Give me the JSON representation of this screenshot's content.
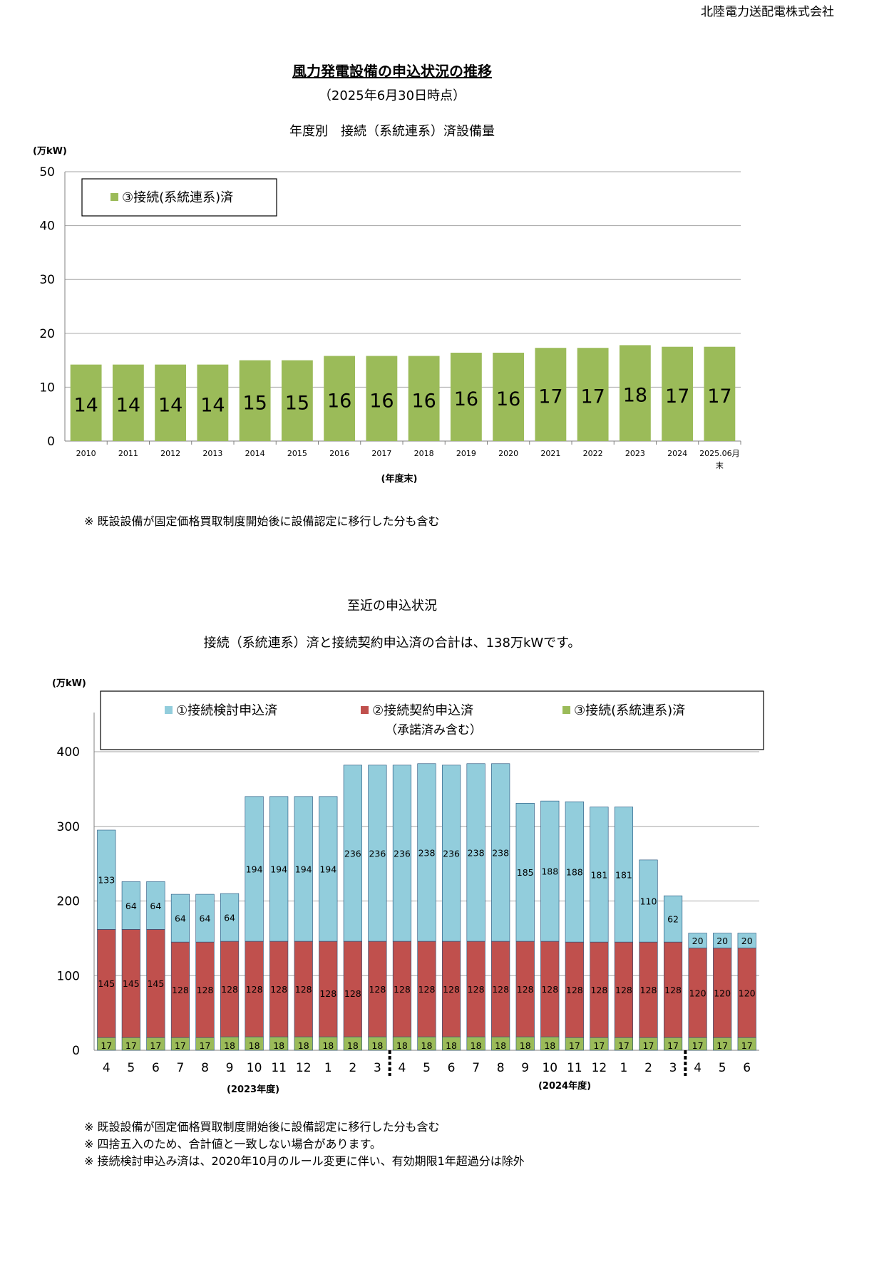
{
  "company": "北陸電力送配電株式会社",
  "title": "風力発電設備の申込状況の推移",
  "as_of": "（2025年6月30日時点）",
  "chart1_heading": "年度別　接続（系統連系）済設備量",
  "note1": "※ 既設設備が固定価格買取制度開始後に設備認定に移行した分も含む",
  "section2_heading": "至近の申込状況",
  "section2_summary": "接続（系統連系）済と接続契約申込済の合計は、138万kWです。",
  "notes2": [
    "※ 既設設備が固定価格買取制度開始後に設備認定に移行した分も含む",
    "※ 四捨五入のため、合計値と一致しない場合があります。",
    "※ 接続検討申込み済は、2020年10月のルール変更に伴い、有効期限1年超過分は除外"
  ],
  "colors": {
    "green": "#9bbb59",
    "red": "#c0504d",
    "blue": "#92cddc",
    "grid": "#a6a6a6"
  },
  "chart_data": [
    {
      "type": "bar",
      "unit_label": "(万kW)",
      "xlabel": "(年度末)",
      "ylim": [
        0,
        50
      ],
      "yticks": [
        0,
        10,
        20,
        30,
        40,
        50
      ],
      "legend": [
        "③接続(系統連系)済"
      ],
      "legend_position": "top-left",
      "categories": [
        "2010",
        "2011",
        "2012",
        "2013",
        "2014",
        "2015",
        "2016",
        "2017",
        "2018",
        "2019",
        "2020",
        "2021",
        "2022",
        "2023",
        "2024",
        "2025.06月末"
      ],
      "values": [
        14.2,
        14.2,
        14.2,
        14.2,
        15.0,
        15.0,
        15.8,
        15.8,
        15.8,
        16.4,
        16.4,
        17.3,
        17.3,
        17.8,
        17.5,
        17.5
      ],
      "labels": [
        "14",
        "14",
        "14",
        "14",
        "15",
        "15",
        "16",
        "16",
        "16",
        "16",
        "16",
        "17",
        "17",
        "18",
        "17",
        "17"
      ]
    },
    {
      "type": "bar",
      "stacked": true,
      "unit_label": "(万kW)",
      "ylim": [
        0,
        400
      ],
      "yticks": [
        0,
        100,
        200,
        300,
        400
      ],
      "legend": [
        "①接続検討申込済",
        "②接続契約申込済",
        "（承諾済み含む）",
        "③接続(系統連系)済"
      ],
      "legend_position": "top",
      "categories": [
        "4",
        "5",
        "6",
        "7",
        "8",
        "9",
        "10",
        "11",
        "12",
        "1",
        "2",
        "3",
        "4",
        "5",
        "6",
        "7",
        "8",
        "9",
        "10",
        "11",
        "12",
        "1",
        "2",
        "3",
        "4",
        "5",
        "6"
      ],
      "fiscal_year_labels": [
        "(2023年度)",
        "(2024年度)"
      ],
      "series": [
        {
          "name": "③接続(系統連系)済",
          "values": [
            17,
            17,
            17,
            17,
            17,
            18,
            18,
            18,
            18,
            18,
            18,
            18,
            18,
            18,
            18,
            18,
            18,
            18,
            18,
            17,
            17,
            17,
            17,
            17,
            17,
            17,
            17
          ]
        },
        {
          "name": "②接続契約申込済",
          "values": [
            145,
            145,
            145,
            128,
            128,
            128,
            128,
            128,
            128,
            128,
            128,
            128,
            128,
            128,
            128,
            128,
            128,
            128,
            128,
            128,
            128,
            128,
            128,
            128,
            120,
            120,
            120
          ]
        },
        {
          "name": "①接続検討申込済",
          "values": [
            133,
            64,
            64,
            64,
            64,
            64,
            194,
            194,
            194,
            194,
            236,
            236,
            236,
            238,
            236,
            238,
            238,
            185,
            188,
            188,
            181,
            181,
            110,
            62,
            20,
            20,
            20
          ]
        }
      ]
    }
  ]
}
